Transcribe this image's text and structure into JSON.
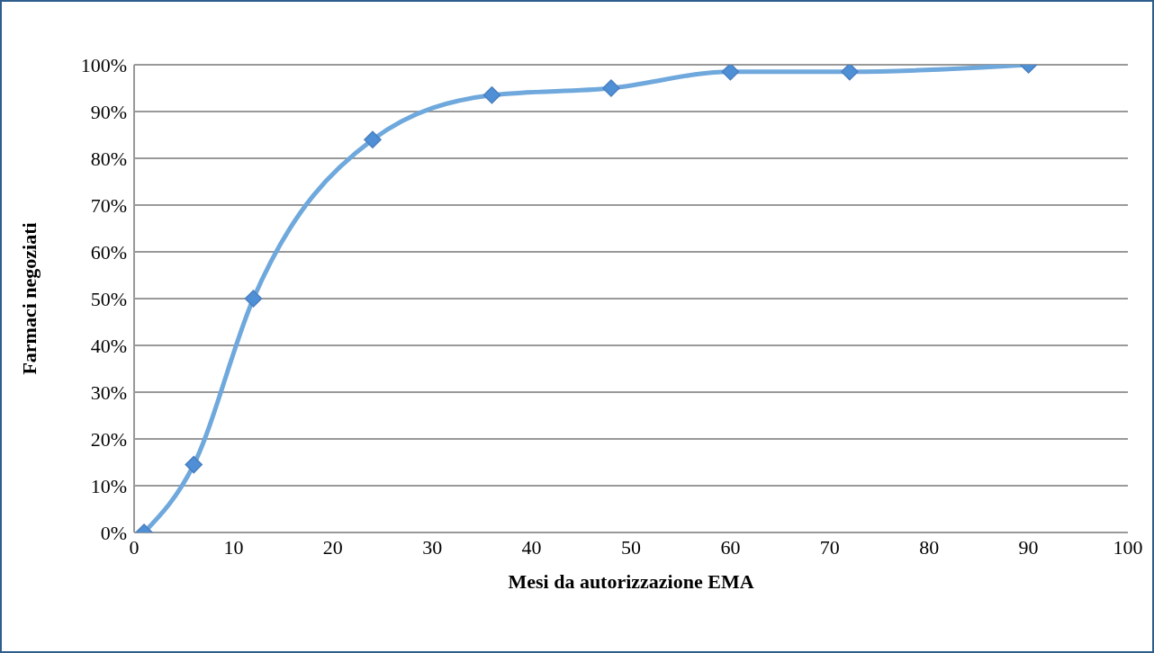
{
  "chart_data": {
    "type": "line",
    "xlabel": "Mesi da autorizzazione EMA",
    "ylabel": "Farmaci negoziati",
    "x": [
      1,
      6,
      12,
      24,
      36,
      48,
      60,
      72,
      90
    ],
    "series": [
      {
        "color": "#6fa8dc",
        "values": [
          0,
          14.5,
          50,
          84,
          93.5,
          95,
          98.5,
          98.5,
          100
        ]
      }
    ],
    "xlim": [
      0,
      100
    ],
    "xticks": [
      0,
      10,
      20,
      30,
      40,
      50,
      60,
      70,
      80,
      90,
      100
    ],
    "ylim": [
      0,
      100
    ],
    "yticks": [
      {
        "value": 0,
        "label": "0%"
      },
      {
        "value": 10,
        "label": "10%"
      },
      {
        "value": 20,
        "label": "20%"
      },
      {
        "value": 30,
        "label": "30%"
      },
      {
        "value": 40,
        "label": "40%"
      },
      {
        "value": 50,
        "label": "50%"
      },
      {
        "value": 60,
        "label": "60%"
      },
      {
        "value": 70,
        "label": "70%"
      },
      {
        "value": 80,
        "label": "80%"
      },
      {
        "value": 90,
        "label": "90%"
      },
      {
        "value": 100,
        "label": "100%"
      }
    ],
    "grid": "y",
    "marker": "diamond",
    "line_style": "solid"
  }
}
